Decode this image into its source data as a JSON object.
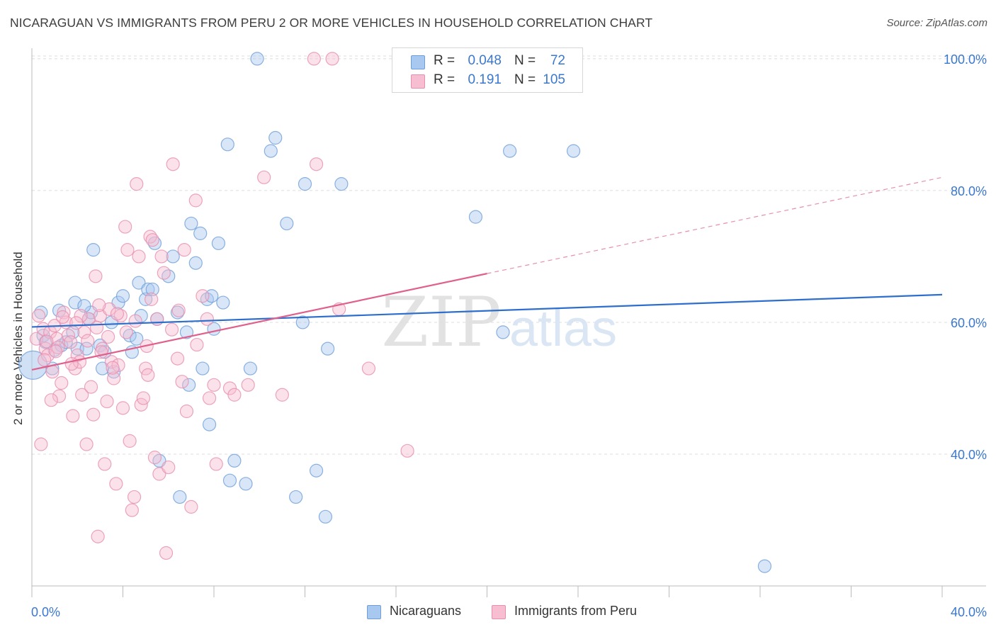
{
  "title": "NICARAGUAN VS IMMIGRANTS FROM PERU 2 OR MORE VEHICLES IN HOUSEHOLD CORRELATION CHART",
  "source": "Source: ZipAtlas.com",
  "watermark": {
    "zip": "ZIP",
    "atlas": "atlas"
  },
  "legend_top": {
    "rows": [
      {
        "r_label": "R =",
        "r_value": "0.048",
        "n_label": "N =",
        "n_value": "72",
        "fill": "#a9c8ef",
        "stroke": "#6f9fd8"
      },
      {
        "r_label": "R =",
        "r_value": "0.191",
        "n_label": "N =",
        "n_value": "105",
        "fill": "#f7bdd0",
        "stroke": "#e78faf"
      }
    ]
  },
  "legend_bottom": [
    {
      "label": "Nicaraguans",
      "fill": "#a9c8ef",
      "stroke": "#6f9fd8"
    },
    {
      "label": "Immigrants from Peru",
      "fill": "#f7bdd0",
      "stroke": "#e78faf"
    }
  ],
  "chart_data": {
    "type": "scatter",
    "title": "NICARAGUAN VS IMMIGRANTS FROM PERU 2 OR MORE VEHICLES IN HOUSEHOLD CORRELATION CHART",
    "xlabel": "",
    "ylabel": "2 or more Vehicles in Household",
    "xlim": [
      0,
      40
    ],
    "ylim": [
      20,
      103
    ],
    "x_tick_labels": [
      {
        "value": 0,
        "label": "0.0%"
      },
      {
        "value": 40,
        "label": "40.0%"
      }
    ],
    "y_tick_labels": [
      {
        "value": 40,
        "label": "40.0%"
      },
      {
        "value": 60,
        "label": "60.0%"
      },
      {
        "value": 80,
        "label": "80.0%"
      },
      {
        "value": 100,
        "label": "100.0%"
      }
    ],
    "x_ticks": [
      0,
      4,
      8,
      12,
      16,
      20,
      24,
      28,
      32,
      36,
      40
    ],
    "y_gridlines": [
      40,
      60,
      80,
      100
    ],
    "grid": true,
    "series": [
      {
        "name": "Nicaraguans",
        "color": "#6f9fd8",
        "fill": "#a9c8ef",
        "points": [
          [
            0.05,
            53.5
          ],
          [
            0.4,
            61.5
          ],
          [
            0.5,
            58
          ],
          [
            0.6,
            57
          ],
          [
            0.9,
            53
          ],
          [
            1.0,
            55.8
          ],
          [
            1.2,
            61.8
          ],
          [
            1.3,
            56.5
          ],
          [
            1.5,
            57
          ],
          [
            1.8,
            58.5
          ],
          [
            1.9,
            63
          ],
          [
            2.0,
            56
          ],
          [
            2.4,
            56
          ],
          [
            2.5,
            60.5
          ],
          [
            2.6,
            61.5
          ],
          [
            2.7,
            71
          ],
          [
            3.0,
            56.5
          ],
          [
            3.1,
            53
          ],
          [
            3.2,
            55.5
          ],
          [
            3.6,
            52.5
          ],
          [
            3.8,
            63
          ],
          [
            4.0,
            64
          ],
          [
            4.3,
            58
          ],
          [
            4.4,
            55.5
          ],
          [
            4.7,
            66
          ],
          [
            4.8,
            61
          ],
          [
            5.0,
            63.5
          ],
          [
            5.1,
            65
          ],
          [
            5.3,
            65
          ],
          [
            5.4,
            72
          ],
          [
            5.5,
            60.5
          ],
          [
            5.6,
            39
          ],
          [
            6.0,
            67
          ],
          [
            6.2,
            70
          ],
          [
            6.4,
            61.5
          ],
          [
            6.5,
            33.5
          ],
          [
            6.8,
            58.5
          ],
          [
            6.9,
            50.5
          ],
          [
            7.0,
            75
          ],
          [
            7.2,
            69
          ],
          [
            7.4,
            73.5
          ],
          [
            7.5,
            53
          ],
          [
            7.7,
            63.5
          ],
          [
            7.8,
            44.5
          ],
          [
            8.0,
            59
          ],
          [
            8.2,
            72
          ],
          [
            8.4,
            63
          ],
          [
            8.6,
            87
          ],
          [
            8.7,
            36
          ],
          [
            8.9,
            39
          ],
          [
            9.4,
            35.5
          ],
          [
            9.6,
            53
          ],
          [
            9.9,
            100
          ],
          [
            10.5,
            86
          ],
          [
            10.7,
            88
          ],
          [
            11.2,
            75
          ],
          [
            11.6,
            33.5
          ],
          [
            11.9,
            60
          ],
          [
            12.0,
            81
          ],
          [
            12.5,
            37.5
          ],
          [
            12.9,
            30.5
          ],
          [
            13.0,
            56
          ],
          [
            13.6,
            81
          ],
          [
            19.5,
            76
          ],
          [
            20.7,
            58.5
          ],
          [
            21.0,
            86
          ],
          [
            23.8,
            86
          ],
          [
            32.2,
            23
          ],
          [
            2.3,
            62.5
          ],
          [
            3.5,
            60
          ],
          [
            4.6,
            57.5
          ],
          [
            7.9,
            64
          ]
        ],
        "trend": {
          "x0": 0,
          "y0": 59.3,
          "x1": 40,
          "y1": 64.2,
          "dashed_to": null
        }
      },
      {
        "name": "Immigrants from Peru",
        "color": "#e78faf",
        "fill": "#f7bdd0",
        "points": [
          [
            0.2,
            57.5
          ],
          [
            0.3,
            61
          ],
          [
            0.4,
            41.5
          ],
          [
            0.5,
            59
          ],
          [
            0.6,
            56
          ],
          [
            0.7,
            55
          ],
          [
            0.8,
            58.5
          ],
          [
            0.9,
            52.5
          ],
          [
            1.0,
            59.5
          ],
          [
            1.1,
            57.5
          ],
          [
            1.2,
            48.8
          ],
          [
            1.3,
            50.8
          ],
          [
            1.4,
            61.5
          ],
          [
            1.5,
            60
          ],
          [
            1.6,
            58
          ],
          [
            1.7,
            57
          ],
          [
            1.8,
            45.8
          ],
          [
            1.9,
            53
          ],
          [
            2.0,
            55
          ],
          [
            2.1,
            54
          ],
          [
            2.2,
            49
          ],
          [
            2.3,
            58.5
          ],
          [
            2.4,
            41.5
          ],
          [
            2.5,
            60.5
          ],
          [
            2.6,
            50.2
          ],
          [
            2.7,
            46
          ],
          [
            2.8,
            67
          ],
          [
            2.9,
            27.5
          ],
          [
            3.0,
            61
          ],
          [
            3.1,
            56
          ],
          [
            3.2,
            38.5
          ],
          [
            3.3,
            48
          ],
          [
            3.4,
            62
          ],
          [
            3.5,
            54
          ],
          [
            3.6,
            51.5
          ],
          [
            3.7,
            35.5
          ],
          [
            3.8,
            53.5
          ],
          [
            3.9,
            61
          ],
          [
            4.0,
            47
          ],
          [
            4.1,
            74.5
          ],
          [
            4.2,
            71
          ],
          [
            4.3,
            42
          ],
          [
            4.4,
            31.5
          ],
          [
            4.5,
            33.5
          ],
          [
            4.6,
            81
          ],
          [
            4.7,
            70
          ],
          [
            4.8,
            47.5
          ],
          [
            4.9,
            48.5
          ],
          [
            5.0,
            53
          ],
          [
            5.1,
            52
          ],
          [
            5.2,
            73
          ],
          [
            5.3,
            72.5
          ],
          [
            5.4,
            39.5
          ],
          [
            5.5,
            60.5
          ],
          [
            5.6,
            37
          ],
          [
            5.7,
            70
          ],
          [
            5.8,
            67.5
          ],
          [
            5.9,
            25
          ],
          [
            6.0,
            38
          ],
          [
            6.2,
            84
          ],
          [
            6.4,
            54.5
          ],
          [
            6.6,
            51
          ],
          [
            6.7,
            71
          ],
          [
            6.8,
            46.5
          ],
          [
            7.0,
            32
          ],
          [
            7.2,
            78.5
          ],
          [
            7.5,
            64
          ],
          [
            7.7,
            60.5
          ],
          [
            7.8,
            48.5
          ],
          [
            8.0,
            50.5
          ],
          [
            8.1,
            38.5
          ],
          [
            8.7,
            50
          ],
          [
            8.9,
            49
          ],
          [
            9.5,
            50.5
          ],
          [
            10.2,
            82
          ],
          [
            11.0,
            49
          ],
          [
            12.4,
            100
          ],
          [
            12.5,
            84
          ],
          [
            13.2,
            100
          ],
          [
            13.5,
            62
          ],
          [
            14.8,
            53
          ],
          [
            16.5,
            40.5
          ],
          [
            1.15,
            56.2
          ],
          [
            2.15,
            61
          ],
          [
            3.35,
            57.8
          ],
          [
            4.15,
            58.5
          ],
          [
            5.25,
            63.5
          ],
          [
            0.55,
            54.3
          ],
          [
            1.75,
            53.7
          ],
          [
            2.85,
            59.2
          ],
          [
            3.75,
            61.3
          ],
          [
            0.85,
            48.2
          ],
          [
            1.05,
            55.6
          ],
          [
            1.35,
            60.8
          ],
          [
            2.45,
            57.2
          ],
          [
            3.05,
            55.5
          ],
          [
            3.55,
            53.1
          ],
          [
            4.55,
            60.2
          ],
          [
            5.05,
            56.4
          ],
          [
            6.15,
            58.9
          ],
          [
            6.45,
            61.8
          ],
          [
            7.25,
            56.6
          ],
          [
            1.95,
            59.9
          ],
          [
            0.65,
            57.1
          ],
          [
            2.95,
            62.6
          ]
        ],
        "trend": {
          "x0": 0,
          "y0": 52.8,
          "x1": 20,
          "y1": 67.4,
          "dashed_to": {
            "x": 40,
            "y": 82
          }
        }
      }
    ]
  }
}
